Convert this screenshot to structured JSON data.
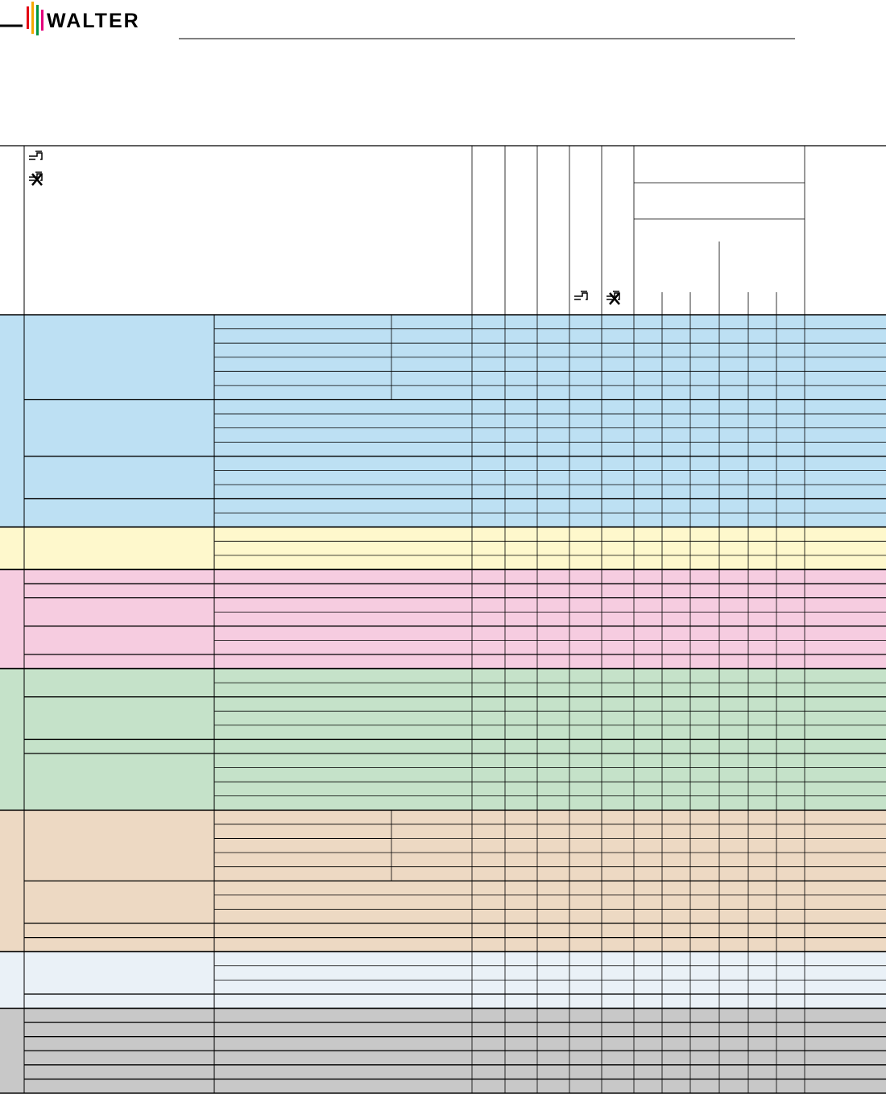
{
  "header": {
    "logo": "WALTER"
  }
}
